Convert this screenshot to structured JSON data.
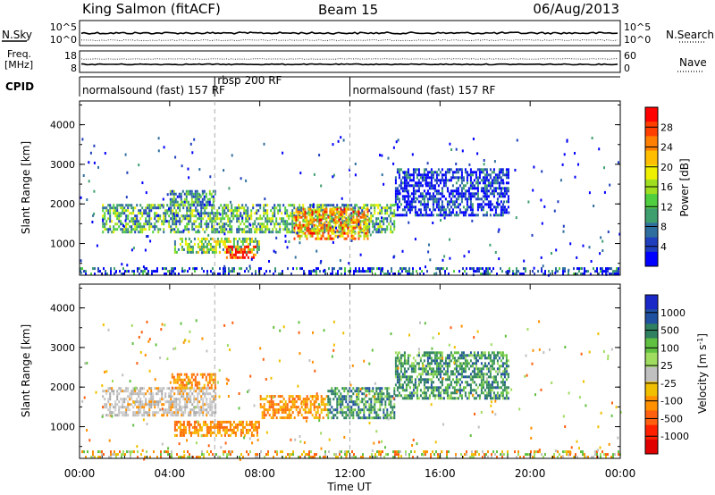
{
  "header": {
    "station": "King Salmon (fitACF)",
    "beam": "Beam 15",
    "date": "06/Aug/2013"
  },
  "noise_panel": {
    "left_label": "N.Sky",
    "right_label": "N.Search",
    "left_ticks": [
      "10^5",
      "10^0"
    ],
    "right_ticks": [
      "10^5",
      "10^0"
    ]
  },
  "freq_panel": {
    "left_label_1": "Freq.",
    "left_label_2": "[MHz]",
    "right_label": "Nave",
    "left_ticks": [
      "18",
      "8"
    ],
    "right_ticks": [
      "60",
      "0"
    ]
  },
  "cpid": {
    "label": "CPID",
    "segments": [
      {
        "start_hour": 0,
        "end_hour": 6,
        "text": "normalsound (fast) 157 RF"
      },
      {
        "start_hour": 6,
        "end_hour": 12,
        "text": "rbsp 200 RF"
      },
      {
        "start_hour": 12,
        "end_hour": 24,
        "text": "normalsound (fast) 157 RF"
      }
    ]
  },
  "x_axis": {
    "label": "Time UT",
    "ticks": [
      "00:00",
      "04:00",
      "08:00",
      "12:00",
      "16:00",
      "20:00",
      "00:00"
    ]
  },
  "chart_data": [
    {
      "type": "heatmap",
      "name": "power",
      "ylabel": "Slant Range [km]",
      "yticks": [
        1000,
        2000,
        3000,
        4000
      ],
      "ylim": [
        200,
        4600
      ],
      "xlim_hours": [
        0,
        24
      ],
      "colorbar": {
        "label": "Power [dB]",
        "ticks": [
          "4",
          "8",
          "12",
          "16",
          "20",
          "24",
          "28"
        ],
        "colors": [
          "#0000ff",
          "#1f3fbf",
          "#2f6f9f",
          "#3f9f6f",
          "#4fcf3f",
          "#9fdf1f",
          "#efef00",
          "#ffbf00",
          "#ff7f00",
          "#ff3f00",
          "#ff0000"
        ]
      },
      "echo_regions": [
        {
          "t0": 1.0,
          "t1": 14.0,
          "r0": 1300,
          "r1": 2000,
          "level": 0.35
        },
        {
          "t0": 4.0,
          "t1": 6.0,
          "r0": 2000,
          "r1": 2350,
          "level": 0.3
        },
        {
          "t0": 4.2,
          "t1": 8.0,
          "r0": 800,
          "r1": 1150,
          "level": 0.45
        },
        {
          "t0": 6.5,
          "t1": 7.8,
          "r0": 650,
          "r1": 950,
          "level": 0.9
        },
        {
          "t0": 9.5,
          "t1": 12.8,
          "r0": 1100,
          "r1": 1900,
          "level": 0.7
        },
        {
          "t0": 0.0,
          "t1": 24.0,
          "r0": 250,
          "r1": 400,
          "level": 0.15
        },
        {
          "t0": 14.0,
          "t1": 19.0,
          "r0": 1700,
          "r1": 2900,
          "level": 0.1
        }
      ]
    },
    {
      "type": "heatmap",
      "name": "velocity",
      "ylabel": "Slant Range [km]",
      "yticks": [
        1000,
        2000,
        3000,
        4000
      ],
      "ylim": [
        200,
        4600
      ],
      "xlim_hours": [
        0,
        24
      ],
      "colorbar": {
        "label": "Velocity [m s",
        "label_sup": "-1",
        "label_end": "]",
        "ticks": [
          "1000",
          "500",
          "100",
          "25",
          "-25",
          "-100",
          "-500",
          "-1000"
        ],
        "colors": [
          "#1a28c8",
          "#2050a0",
          "#2e8060",
          "#60c040",
          "#a0dc60",
          "#c0c0c0",
          "#f0c000",
          "#ff9000",
          "#ff6010",
          "#ff2000",
          "#e00000"
        ]
      },
      "echo_regions": [
        {
          "t0": 1.0,
          "t1": 6.0,
          "r0": 1300,
          "r1": 2000,
          "kind": "gray"
        },
        {
          "t0": 4.0,
          "t1": 6.0,
          "r0": 2000,
          "r1": 2350,
          "kind": "orange"
        },
        {
          "t0": 4.2,
          "t1": 8.0,
          "r0": 800,
          "r1": 1150,
          "kind": "orange"
        },
        {
          "t0": 8.0,
          "t1": 11.0,
          "r0": 1200,
          "r1": 1800,
          "kind": "orange"
        },
        {
          "t0": 11.0,
          "t1": 14.0,
          "r0": 1200,
          "r1": 2000,
          "kind": "green"
        },
        {
          "t0": 0.0,
          "t1": 24.0,
          "r0": 250,
          "r1": 400,
          "kind": "mixed"
        },
        {
          "t0": 14.0,
          "t1": 19.0,
          "r0": 1700,
          "r1": 2900,
          "kind": "green"
        }
      ]
    }
  ]
}
